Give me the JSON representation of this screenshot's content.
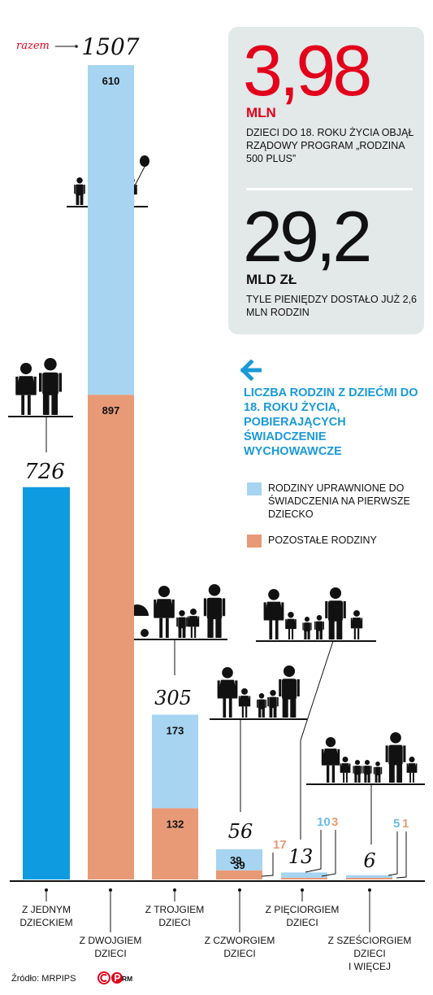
{
  "chart_data": {
    "type": "bar",
    "title": "",
    "xlabel": "",
    "ylabel": "",
    "ylim": [
      0,
      1507
    ],
    "categories": [
      "Z JEDNYM DZIECKIEM",
      "Z DWOJGIEM DZIECI",
      "Z TROJGIEM DZIECI",
      "Z CZWORGIEM DZIECI",
      "Z PIĘCIORGIEM DZIECI",
      "Z SZEŚCIORGIEM DZIECI I WIĘCEJ"
    ],
    "totals": [
      "726",
      "1507",
      "305",
      "56",
      "13",
      "6"
    ],
    "series": [
      {
        "name": "RODZINY UPRAWNIONE DO ŚWIADCZENIA NA PIERWSZE DZIECKO",
        "color": "#a6d4f1",
        "values": [
          0,
          610,
          173,
          39,
          10,
          5
        ],
        "labels": [
          "",
          "610",
          "173",
          "39",
          "10",
          "5"
        ]
      },
      {
        "name": "POZOSTAŁE RODZINY",
        "color": "#e89a76",
        "values": [
          0,
          897,
          132,
          17,
          3,
          1
        ],
        "labels": [
          "",
          "897",
          "132",
          "17",
          "3",
          "1"
        ]
      }
    ],
    "single_color": "#0f9be0",
    "total_label": "razem",
    "legend": "right",
    "grid": false
  },
  "stats": {
    "stat1_value": "3,98",
    "stat1_unit": "MLN",
    "stat1_desc": "DZIECI DO 18. ROKU ŻYCIA OBJĄŁ RZĄDOWY PROGRAM „RODZINA 500 PLUS”",
    "stat2_value": "29,2",
    "stat2_unit": "MLD ZŁ",
    "stat2_desc": "TYLE PIENIĘDZY DOSTAŁO JUŻ 2,6 MLN RODZIN"
  },
  "legend": {
    "title": "LICZBA RODZIN Z DZIEĆMI DO 18. ROKU ŻYCIA, POBIERAJĄCYCH ŚWIADCZENIE WYCHOWAWCZE",
    "item1": "RODZINY UPRAWNIONE DO ŚWIADCZENIA NA PIERWSZE DZIECKO",
    "item2": "POZOSTAŁE RODZINY",
    "arrow_icon": "arrow-left-icon",
    "accent": "#1a9ad7"
  },
  "footer": {
    "source": "Źródło: MRPIPS",
    "author": "RM"
  }
}
